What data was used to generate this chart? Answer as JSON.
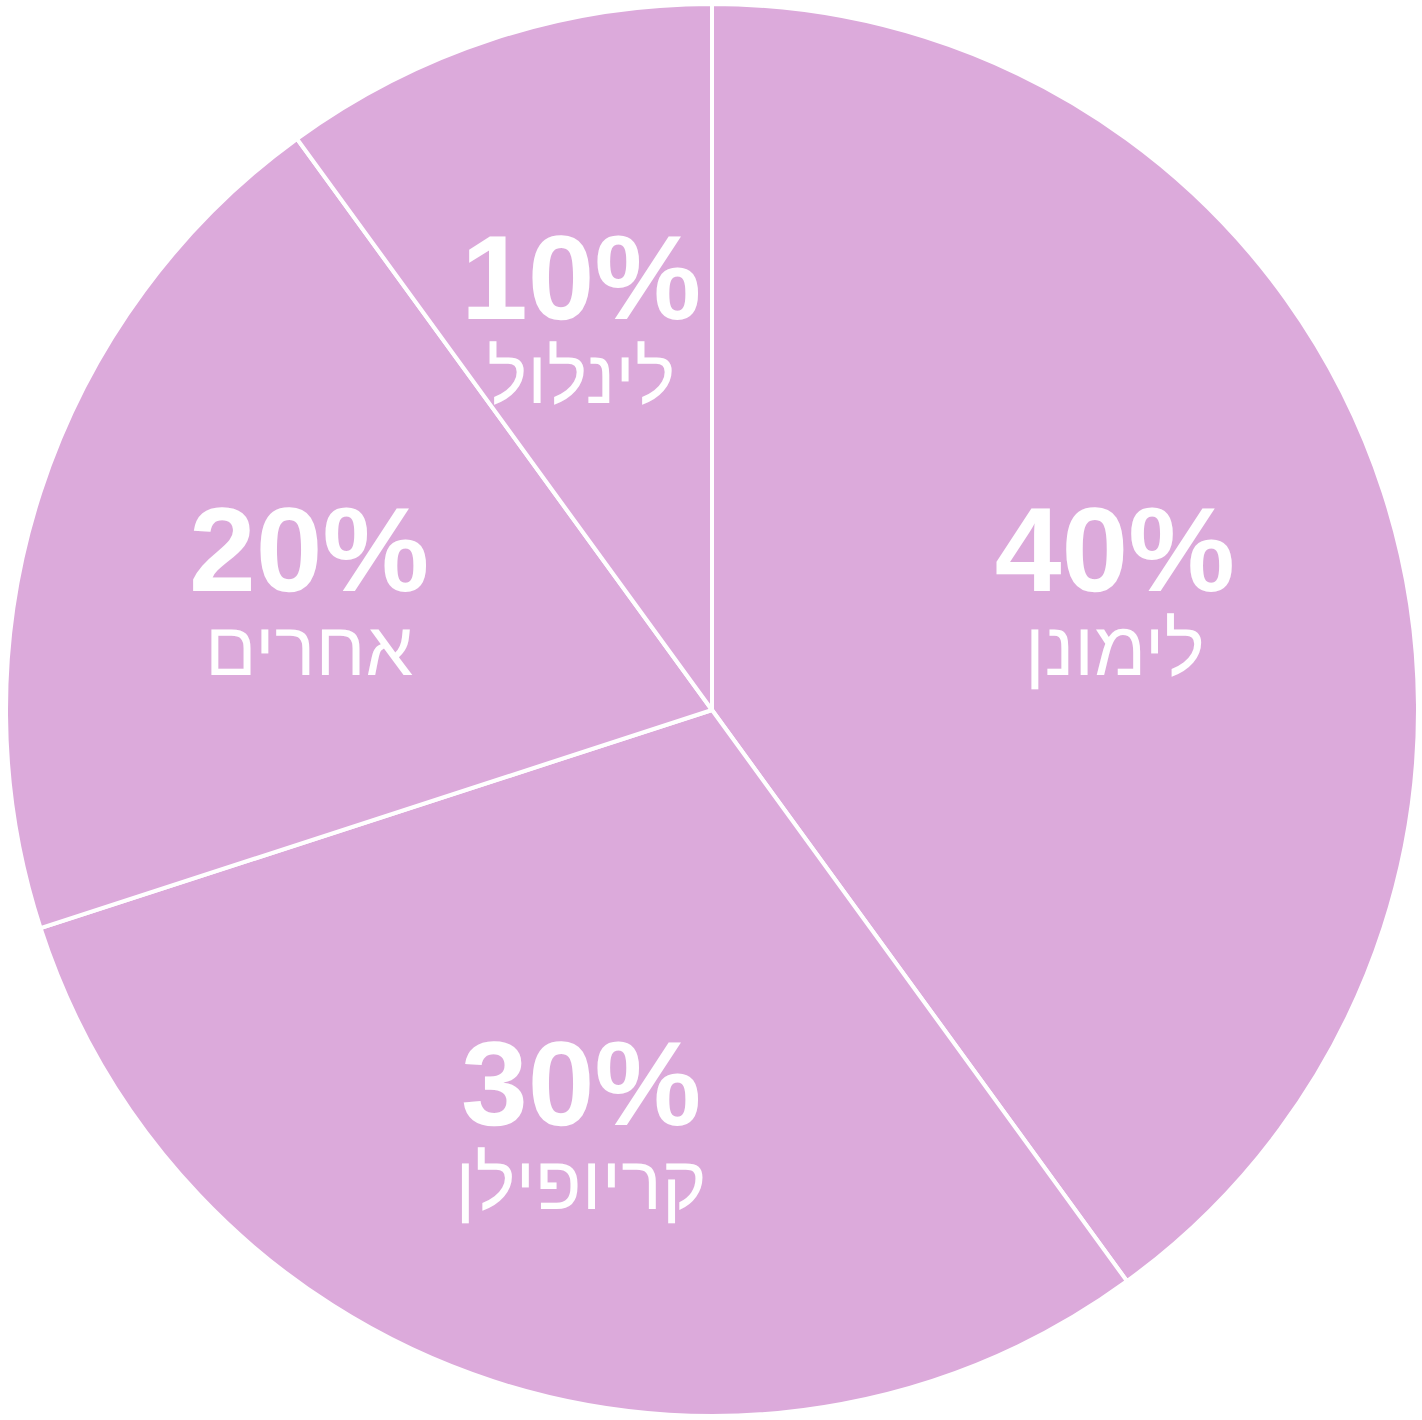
{
  "chart_data": {
    "type": "pie",
    "categories": [
      "לימונן",
      "קריופילן",
      "אחרים",
      "לינלול"
    ],
    "values": [
      40,
      30,
      20,
      10
    ],
    "value_labels": [
      "40%",
      "30%",
      "20%",
      "10%"
    ],
    "colors": [
      "#dcaadb",
      "#dcaadb",
      "#dcaadb",
      "#dcaadb"
    ]
  }
}
